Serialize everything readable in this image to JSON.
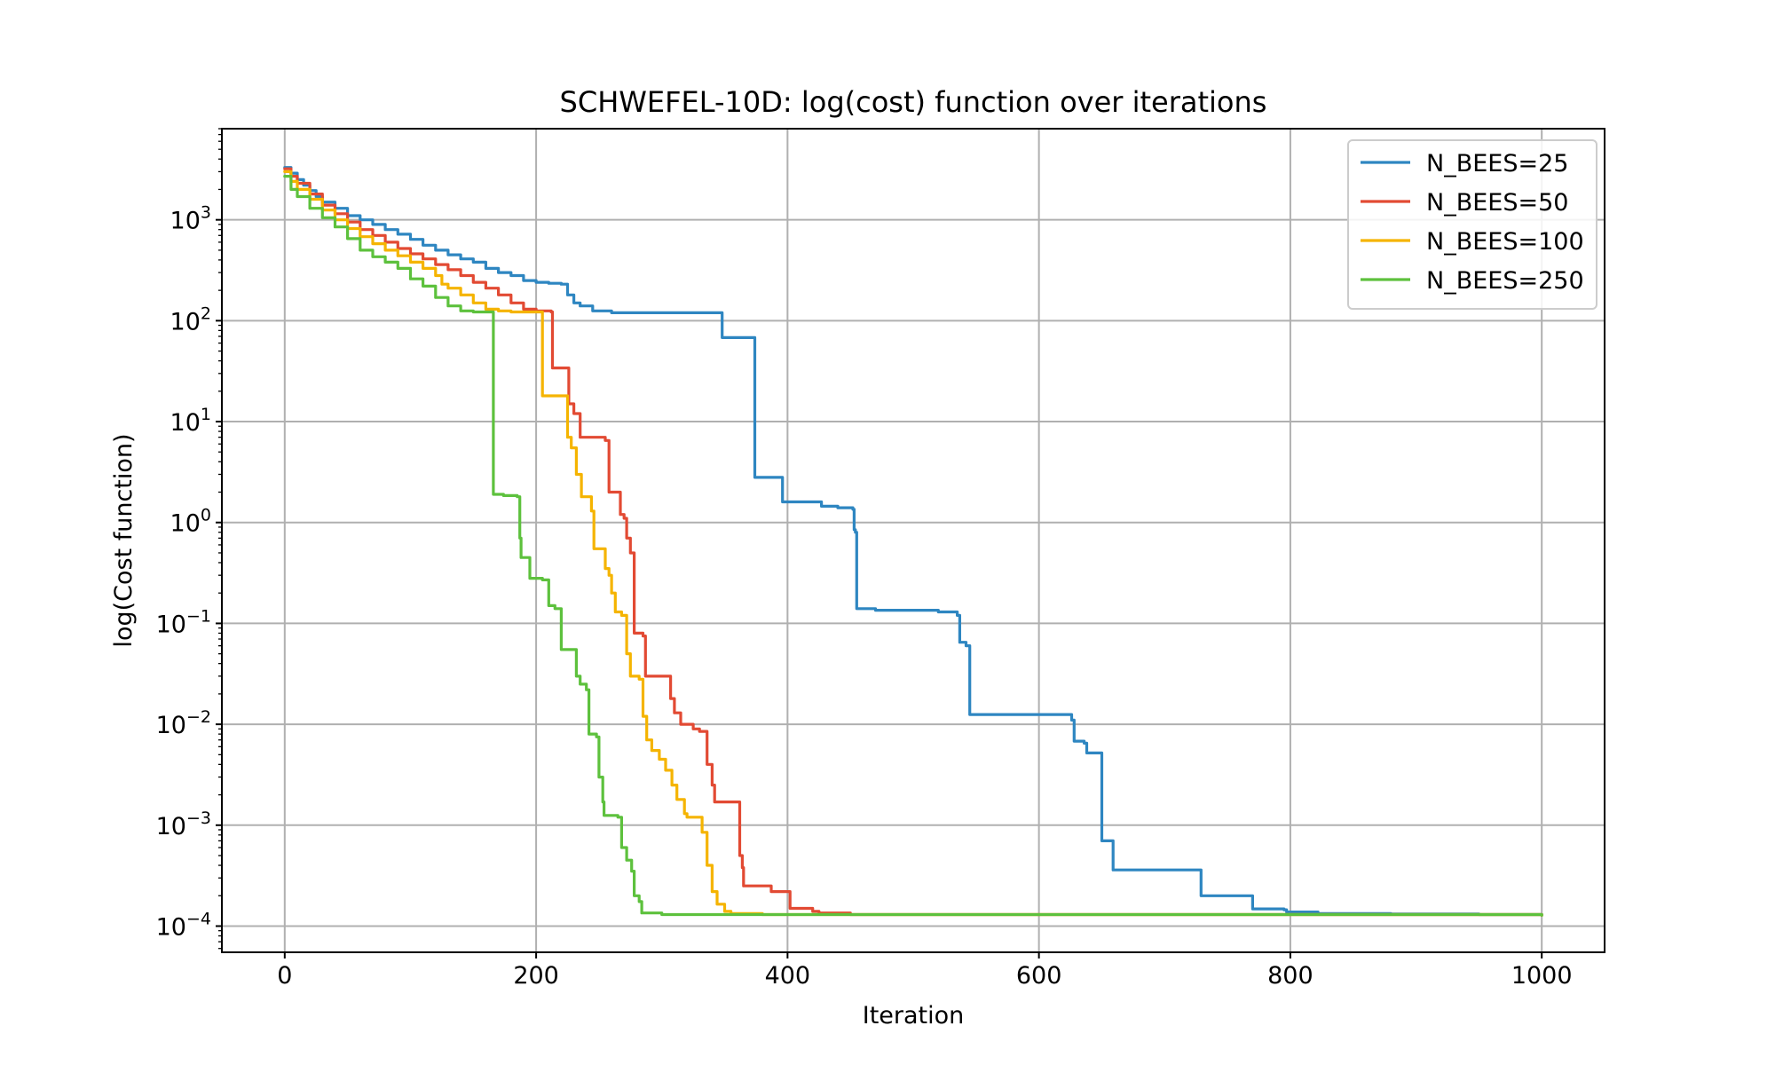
{
  "chart_data": {
    "type": "line",
    "title": "SCHWEFEL-10D: log(cost) function over iterations",
    "xlabel": "Iteration",
    "ylabel": "log(Cost function)",
    "xlim": [
      -50,
      1050
    ],
    "ylim": [
      5.5e-05,
      8000
    ],
    "yscale": "log",
    "xticks": [
      0,
      200,
      400,
      600,
      800,
      1000
    ],
    "yticks": [
      {
        "value": 1000,
        "base": "10",
        "exp": "3"
      },
      {
        "value": 100,
        "base": "10",
        "exp": "2"
      },
      {
        "value": 10,
        "base": "10",
        "exp": "1"
      },
      {
        "value": 1,
        "base": "10",
        "exp": "0"
      },
      {
        "value": 0.1,
        "base": "10",
        "exp": "−1"
      },
      {
        "value": 0.01,
        "base": "10",
        "exp": "−2"
      },
      {
        "value": 0.001,
        "base": "10",
        "exp": "−3"
      },
      {
        "value": 0.0001,
        "base": "10",
        "exp": "−4"
      }
    ],
    "grid": true,
    "legend_position": "top-right",
    "series": [
      {
        "name": "N_BEES=25",
        "color": "#2e86c1",
        "points": [
          [
            0,
            3300
          ],
          [
            5,
            2900
          ],
          [
            10,
            2500
          ],
          [
            15,
            2200
          ],
          [
            20,
            1950
          ],
          [
            25,
            1700
          ],
          [
            30,
            1500
          ],
          [
            40,
            1300
          ],
          [
            50,
            1100
          ],
          [
            60,
            1000
          ],
          [
            70,
            900
          ],
          [
            80,
            800
          ],
          [
            90,
            720
          ],
          [
            100,
            640
          ],
          [
            110,
            560
          ],
          [
            120,
            500
          ],
          [
            130,
            450
          ],
          [
            140,
            410
          ],
          [
            150,
            380
          ],
          [
            160,
            330
          ],
          [
            170,
            300
          ],
          [
            180,
            280
          ],
          [
            190,
            250
          ],
          [
            200,
            240
          ],
          [
            210,
            235
          ],
          [
            220,
            230
          ],
          [
            225,
            180
          ],
          [
            230,
            150
          ],
          [
            235,
            140
          ],
          [
            245,
            125
          ],
          [
            260,
            120
          ],
          [
            300,
            120
          ],
          [
            346,
            120
          ],
          [
            348,
            68
          ],
          [
            372,
            68
          ],
          [
            374,
            2.8
          ],
          [
            394,
            2.8
          ],
          [
            396,
            1.6
          ],
          [
            425,
            1.6
          ],
          [
            427,
            1.45
          ],
          [
            440,
            1.4
          ],
          [
            452,
            1.35
          ],
          [
            453,
            0.85
          ],
          [
            454,
            0.8
          ],
          [
            455,
            0.14
          ],
          [
            470,
            0.135
          ],
          [
            520,
            0.13
          ],
          [
            535,
            0.12
          ],
          [
            537,
            0.065
          ],
          [
            542,
            0.06
          ],
          [
            545,
            0.0125
          ],
          [
            620,
            0.0125
          ],
          [
            626,
            0.011
          ],
          [
            628,
            0.0068
          ],
          [
            636,
            0.0065
          ],
          [
            638,
            0.0052
          ],
          [
            648,
            0.0052
          ],
          [
            650,
            0.0007
          ],
          [
            657,
            0.0007
          ],
          [
            659,
            0.00036
          ],
          [
            727,
            0.00036
          ],
          [
            729,
            0.0002
          ],
          [
            768,
            0.0002
          ],
          [
            770,
            0.000148
          ],
          [
            795,
            0.000145
          ],
          [
            797,
            0.000138
          ],
          [
            820,
            0.000138
          ],
          [
            822,
            0.000133
          ],
          [
            880,
            0.000132
          ],
          [
            950,
            0.00013
          ],
          [
            1000,
            0.00013
          ]
        ]
      },
      {
        "name": "N_BEES=50",
        "color": "#e24a33",
        "points": [
          [
            0,
            3200
          ],
          [
            5,
            2700
          ],
          [
            10,
            2300
          ],
          [
            20,
            1800
          ],
          [
            30,
            1400
          ],
          [
            40,
            1150
          ],
          [
            50,
            950
          ],
          [
            60,
            800
          ],
          [
            70,
            700
          ],
          [
            80,
            600
          ],
          [
            90,
            520
          ],
          [
            100,
            460
          ],
          [
            110,
            410
          ],
          [
            120,
            360
          ],
          [
            130,
            320
          ],
          [
            140,
            280
          ],
          [
            150,
            240
          ],
          [
            160,
            210
          ],
          [
            170,
            180
          ],
          [
            180,
            150
          ],
          [
            190,
            130
          ],
          [
            200,
            125
          ],
          [
            212,
            122
          ],
          [
            213,
            34
          ],
          [
            224,
            34
          ],
          [
            226,
            15
          ],
          [
            230,
            12
          ],
          [
            235,
            7
          ],
          [
            255,
            6.5
          ],
          [
            258,
            2
          ],
          [
            265,
            2
          ],
          [
            267,
            1.2
          ],
          [
            270,
            1.1
          ],
          [
            272,
            0.7
          ],
          [
            275,
            0.5
          ],
          [
            278,
            0.08
          ],
          [
            285,
            0.075
          ],
          [
            287,
            0.03
          ],
          [
            305,
            0.03
          ],
          [
            307,
            0.018
          ],
          [
            310,
            0.013
          ],
          [
            315,
            0.01
          ],
          [
            325,
            0.009
          ],
          [
            330,
            0.0085
          ],
          [
            335,
            0.0085
          ],
          [
            336,
            0.004
          ],
          [
            340,
            0.0025
          ],
          [
            342,
            0.0017
          ],
          [
            360,
            0.0017
          ],
          [
            362,
            0.0005
          ],
          [
            364,
            0.00038
          ],
          [
            365,
            0.00025
          ],
          [
            385,
            0.00025
          ],
          [
            387,
            0.00022
          ],
          [
            400,
            0.00022
          ],
          [
            402,
            0.00015
          ],
          [
            420,
            0.00014
          ],
          [
            425,
            0.000135
          ],
          [
            450,
            0.00013
          ],
          [
            1000,
            0.000128
          ]
        ]
      },
      {
        "name": "N_BEES=100",
        "color": "#f5b400",
        "points": [
          [
            0,
            3000
          ],
          [
            5,
            2400
          ],
          [
            10,
            2000
          ],
          [
            20,
            1600
          ],
          [
            30,
            1250
          ],
          [
            40,
            1000
          ],
          [
            50,
            820
          ],
          [
            60,
            680
          ],
          [
            70,
            580
          ],
          [
            80,
            500
          ],
          [
            90,
            440
          ],
          [
            100,
            380
          ],
          [
            110,
            330
          ],
          [
            120,
            280
          ],
          [
            125,
            230
          ],
          [
            130,
            210
          ],
          [
            140,
            180
          ],
          [
            150,
            150
          ],
          [
            160,
            130
          ],
          [
            170,
            125
          ],
          [
            180,
            122
          ],
          [
            204,
            122
          ],
          [
            205,
            18
          ],
          [
            222,
            18
          ],
          [
            225,
            7
          ],
          [
            228,
            5.5
          ],
          [
            232,
            3
          ],
          [
            236,
            1.8
          ],
          [
            244,
            1.3
          ],
          [
            246,
            0.55
          ],
          [
            250,
            0.55
          ],
          [
            255,
            0.35
          ],
          [
            258,
            0.3
          ],
          [
            260,
            0.2
          ],
          [
            263,
            0.13
          ],
          [
            268,
            0.12
          ],
          [
            272,
            0.05
          ],
          [
            275,
            0.03
          ],
          [
            282,
            0.028
          ],
          [
            285,
            0.012
          ],
          [
            288,
            0.007
          ],
          [
            292,
            0.0055
          ],
          [
            298,
            0.0045
          ],
          [
            303,
            0.0035
          ],
          [
            308,
            0.0025
          ],
          [
            312,
            0.0018
          ],
          [
            318,
            0.0013
          ],
          [
            320,
            0.0012
          ],
          [
            330,
            0.0012
          ],
          [
            332,
            0.00085
          ],
          [
            336,
            0.0004
          ],
          [
            340,
            0.00022
          ],
          [
            344,
            0.000165
          ],
          [
            350,
            0.00014
          ],
          [
            355,
            0.000133
          ],
          [
            380,
            0.00013
          ],
          [
            1000,
            0.000128
          ]
        ]
      },
      {
        "name": "N_BEES=250",
        "color": "#5dc13d",
        "points": [
          [
            0,
            2700
          ],
          [
            5,
            2000
          ],
          [
            10,
            1700
          ],
          [
            20,
            1300
          ],
          [
            30,
            1050
          ],
          [
            40,
            850
          ],
          [
            50,
            650
          ],
          [
            60,
            500
          ],
          [
            70,
            430
          ],
          [
            80,
            380
          ],
          [
            90,
            330
          ],
          [
            100,
            260
          ],
          [
            110,
            220
          ],
          [
            120,
            170
          ],
          [
            130,
            140
          ],
          [
            140,
            125
          ],
          [
            150,
            122
          ],
          [
            165,
            122
          ],
          [
            166,
            1.9
          ],
          [
            174,
            1.85
          ],
          [
            185,
            1.8
          ],
          [
            187,
            0.7
          ],
          [
            188,
            0.45
          ],
          [
            193,
            0.45
          ],
          [
            195,
            0.28
          ],
          [
            205,
            0.27
          ],
          [
            210,
            0.15
          ],
          [
            215,
            0.14
          ],
          [
            220,
            0.055
          ],
          [
            230,
            0.055
          ],
          [
            232,
            0.03
          ],
          [
            235,
            0.025
          ],
          [
            240,
            0.022
          ],
          [
            242,
            0.008
          ],
          [
            248,
            0.0075
          ],
          [
            250,
            0.003
          ],
          [
            253,
            0.0017
          ],
          [
            254,
            0.00125
          ],
          [
            265,
            0.0012
          ],
          [
            268,
            0.0006
          ],
          [
            272,
            0.00045
          ],
          [
            276,
            0.00035
          ],
          [
            278,
            0.0002
          ],
          [
            282,
            0.000175
          ],
          [
            284,
            0.000135
          ],
          [
            300,
            0.00013
          ],
          [
            1000,
            0.000128
          ]
        ]
      }
    ]
  }
}
